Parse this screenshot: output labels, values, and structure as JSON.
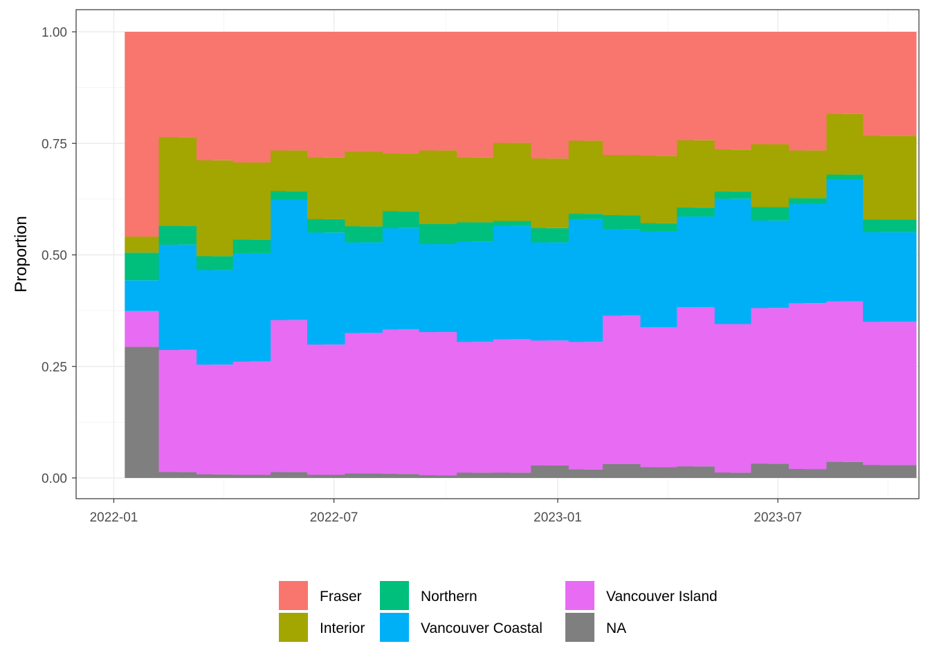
{
  "chart_data": {
    "type": "bar",
    "stacked": true,
    "title": "",
    "xlabel": "",
    "ylabel": "Proportion",
    "ylim": [
      0,
      1
    ],
    "y_ticks": [
      "0.00",
      "0.25",
      "0.50",
      "0.75",
      "1.00"
    ],
    "x_ticks": [
      "2022-01",
      "2022-07",
      "2023-01",
      "2023-07"
    ],
    "x_tick_dates": [
      "2022-01-01",
      "2022-07-01",
      "2023-01-01",
      "2023-07-01"
    ],
    "x_range": [
      "2021-12-01",
      "2023-10-25"
    ],
    "grid": true,
    "legend_position": "bottom",
    "dates": [
      "2022-02-01",
      "2022-03-01",
      "2022-04-01",
      "2022-05-01",
      "2022-06-01",
      "2022-07-01",
      "2022-08-01",
      "2022-09-01",
      "2022-10-01",
      "2022-11-01",
      "2022-12-01",
      "2023-01-01",
      "2023-02-01",
      "2023-03-01",
      "2023-04-01",
      "2023-05-01",
      "2023-06-01",
      "2023-07-01",
      "2023-08-01",
      "2023-09-01",
      "2023-10-01"
    ],
    "stack_order": [
      "NA",
      "Vancouver Island",
      "Vancouver Coastal",
      "Northern",
      "Interior",
      "Fraser"
    ],
    "series": [
      {
        "name": "NA",
        "color": "#7f7f7f",
        "values": [
          0.294,
          0.013,
          0.008,
          0.007,
          0.013,
          0.007,
          0.01,
          0.009,
          0.006,
          0.012,
          0.012,
          0.028,
          0.019,
          0.031,
          0.024,
          0.026,
          0.012,
          0.032,
          0.02,
          0.036,
          0.029
        ]
      },
      {
        "name": "Vancouver Island",
        "color": "#e76bf3",
        "values": [
          0.08,
          0.274,
          0.246,
          0.254,
          0.341,
          0.292,
          0.315,
          0.324,
          0.321,
          0.293,
          0.299,
          0.28,
          0.286,
          0.333,
          0.314,
          0.357,
          0.333,
          0.349,
          0.372,
          0.36,
          0.321
        ]
      },
      {
        "name": "Vancouver Coastal",
        "color": "#00b0f6",
        "values": [
          0.069,
          0.236,
          0.212,
          0.243,
          0.27,
          0.251,
          0.203,
          0.227,
          0.197,
          0.225,
          0.254,
          0.22,
          0.275,
          0.194,
          0.214,
          0.203,
          0.281,
          0.196,
          0.222,
          0.273,
          0.201
        ]
      },
      {
        "name": "Northern",
        "color": "#00bf7d",
        "values": [
          0.062,
          0.042,
          0.031,
          0.03,
          0.019,
          0.03,
          0.036,
          0.038,
          0.045,
          0.043,
          0.011,
          0.032,
          0.012,
          0.031,
          0.019,
          0.02,
          0.016,
          0.03,
          0.013,
          0.011,
          0.028
        ]
      },
      {
        "name": "Interior",
        "color": "#a3a500",
        "values": [
          0.036,
          0.199,
          0.215,
          0.173,
          0.091,
          0.138,
          0.167,
          0.129,
          0.165,
          0.145,
          0.175,
          0.156,
          0.164,
          0.135,
          0.151,
          0.151,
          0.094,
          0.141,
          0.107,
          0.136,
          0.188
        ]
      },
      {
        "name": "Fraser",
        "color": "#f8766d",
        "values": [
          0.459,
          0.236,
          0.288,
          0.293,
          0.266,
          0.282,
          0.269,
          0.273,
          0.266,
          0.282,
          0.249,
          0.284,
          0.244,
          0.276,
          0.278,
          0.243,
          0.264,
          0.252,
          0.266,
          0.184,
          0.233
        ]
      }
    ],
    "legend": {
      "columns": [
        [
          "Fraser",
          "Interior"
        ],
        [
          "Northern",
          "Vancouver Coastal"
        ],
        [
          "Vancouver Island",
          "NA"
        ]
      ]
    }
  }
}
